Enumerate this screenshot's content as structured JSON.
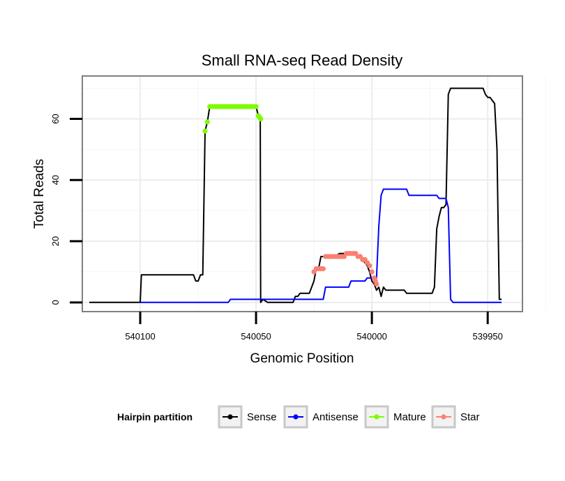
{
  "chart_data": {
    "type": "line",
    "title": "Small RNA-seq Read Density",
    "xlabel": "Genomic Position",
    "ylabel": "Total Reads",
    "xlim": [
      540125,
      539935
    ],
    "ylim": [
      -3,
      74
    ],
    "x_reversed": true,
    "x_ticks": [
      540100,
      540050,
      540000,
      539950
    ],
    "x_tick_labels": [
      "540100",
      "540050",
      "540000",
      "539950"
    ],
    "y_ticks": [
      0,
      20,
      40,
      60
    ],
    "y_tick_labels": [
      "0",
      "20",
      "40",
      "60"
    ],
    "grid": true,
    "legend": {
      "title": "Hairpin partition",
      "position": "bottom",
      "entries": [
        {
          "name": "Sense",
          "color": "#000000"
        },
        {
          "name": "Antisense",
          "color": "#0000ff"
        },
        {
          "name": "Mature",
          "color": "#7cfc00"
        },
        {
          "name": "Star",
          "color": "#fa8072"
        }
      ]
    },
    "series": [
      {
        "name": "Sense",
        "color": "#000000",
        "style": "line",
        "points": [
          [
            540122,
            0
          ],
          [
            540100,
            0
          ],
          [
            540099.5,
            9
          ],
          [
            540090,
            9
          ],
          [
            540077,
            9
          ],
          [
            540076,
            7
          ],
          [
            540075,
            7
          ],
          [
            540074,
            9
          ],
          [
            540073,
            9
          ],
          [
            540072,
            56
          ],
          [
            540071,
            59
          ],
          [
            540070,
            64
          ],
          [
            540050,
            64
          ],
          [
            540049,
            61
          ],
          [
            540048.2,
            60
          ],
          [
            540048,
            0
          ],
          [
            540047,
            1
          ],
          [
            540045,
            0
          ],
          [
            540034,
            0
          ],
          [
            540033,
            2
          ],
          [
            540032,
            2
          ],
          [
            540031,
            3
          ],
          [
            540027,
            3
          ],
          [
            540026,
            5
          ],
          [
            540025,
            7
          ],
          [
            540024,
            11
          ],
          [
            540023,
            11
          ],
          [
            540022,
            15
          ],
          [
            540016,
            15
          ],
          [
            540014,
            16
          ],
          [
            540008,
            16
          ],
          [
            540006,
            15
          ],
          [
            540004,
            14
          ],
          [
            540003,
            13
          ],
          [
            540002,
            12
          ],
          [
            540001,
            10
          ],
          [
            540000,
            7
          ],
          [
            539999,
            6
          ],
          [
            539998,
            4
          ],
          [
            539997,
            5
          ],
          [
            539996,
            2
          ],
          [
            539995,
            5
          ],
          [
            539994,
            4
          ],
          [
            539986,
            4
          ],
          [
            539985,
            3
          ],
          [
            539974,
            3
          ],
          [
            539973,
            5
          ],
          [
            539972,
            24
          ],
          [
            539971,
            28
          ],
          [
            539970,
            31
          ],
          [
            539969,
            31
          ],
          [
            539968,
            32
          ],
          [
            539967,
            68
          ],
          [
            539966,
            70
          ],
          [
            539964,
            70
          ],
          [
            539952,
            70
          ],
          [
            539951,
            68
          ],
          [
            539950,
            67
          ],
          [
            539949,
            67
          ],
          [
            539948,
            66
          ],
          [
            539947,
            65
          ],
          [
            539946,
            50
          ],
          [
            539945,
            1
          ],
          [
            539944,
            1
          ]
        ]
      },
      {
        "name": "Antisense",
        "color": "#0000ff",
        "style": "line",
        "points": [
          [
            540100,
            0
          ],
          [
            540062,
            0
          ],
          [
            540061,
            1
          ],
          [
            540021,
            1
          ],
          [
            540020,
            5
          ],
          [
            540010,
            5
          ],
          [
            540009,
            7
          ],
          [
            540003,
            7
          ],
          [
            540002,
            8
          ],
          [
            539998,
            8
          ],
          [
            539997,
            25
          ],
          [
            539996,
            35
          ],
          [
            539995,
            37
          ],
          [
            539985,
            37
          ],
          [
            539984,
            35
          ],
          [
            539972,
            35
          ],
          [
            539971,
            34
          ],
          [
            539968,
            34
          ],
          [
            539967,
            31
          ],
          [
            539966,
            1
          ],
          [
            539965,
            0
          ],
          [
            539944,
            0
          ]
        ]
      },
      {
        "name": "Mature",
        "color": "#7cfc00",
        "style": "points",
        "points": [
          [
            540072,
            56
          ],
          [
            540071,
            59
          ],
          [
            540070,
            64
          ],
          [
            540069,
            64
          ],
          [
            540068,
            64
          ],
          [
            540067,
            64
          ],
          [
            540066,
            64
          ],
          [
            540065,
            64
          ],
          [
            540064,
            64
          ],
          [
            540063,
            64
          ],
          [
            540062,
            64
          ],
          [
            540061,
            64
          ],
          [
            540060,
            64
          ],
          [
            540059,
            64
          ],
          [
            540058,
            64
          ],
          [
            540057,
            64
          ],
          [
            540056,
            64
          ],
          [
            540055,
            64
          ],
          [
            540054,
            64
          ],
          [
            540053,
            64
          ],
          [
            540052,
            64
          ],
          [
            540051,
            64
          ],
          [
            540050,
            64
          ],
          [
            540049,
            61
          ],
          [
            540048.5,
            60.5
          ],
          [
            540048,
            60
          ]
        ]
      },
      {
        "name": "Star",
        "color": "#fa8072",
        "style": "points",
        "points": [
          [
            540025,
            10
          ],
          [
            540024,
            11
          ],
          [
            540023,
            11
          ],
          [
            540022,
            11
          ],
          [
            540021,
            11
          ],
          [
            540020,
            15
          ],
          [
            540019,
            15
          ],
          [
            540018,
            15
          ],
          [
            540017,
            15
          ],
          [
            540016,
            15
          ],
          [
            540015,
            15
          ],
          [
            540014,
            15
          ],
          [
            540013,
            15
          ],
          [
            540012,
            15
          ],
          [
            540011,
            16
          ],
          [
            540010,
            16
          ],
          [
            540009,
            16
          ],
          [
            540008,
            16
          ],
          [
            540007,
            16
          ],
          [
            540006,
            15
          ],
          [
            540005,
            15
          ],
          [
            540004,
            14
          ],
          [
            540003,
            14
          ],
          [
            540002,
            13
          ],
          [
            540001,
            12
          ],
          [
            540000,
            10
          ],
          [
            539999,
            8
          ],
          [
            539998.5,
            7
          ],
          [
            539998,
            6
          ]
        ]
      }
    ]
  }
}
